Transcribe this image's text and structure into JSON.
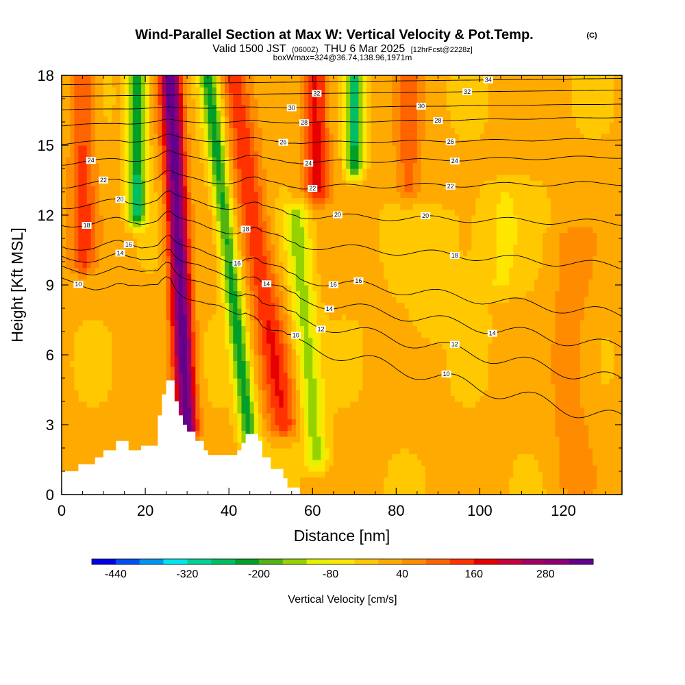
{
  "title": {
    "main": "Wind-Parallel Section at Max W: Vertical Velocity & Pot.Temp.",
    "copyright": "(C)",
    "valid_prefix": "Valid 1500 JST",
    "valid_utc": "(0600Z)",
    "valid_date": "THU 6 Mar 2025",
    "forecast": "[12hrFcst@2228z]",
    "box_info": "boxWmax=324@36.74,138.96,1971m"
  },
  "chart_data": {
    "type": "heatmap",
    "xlabel": "Distance [nm]",
    "ylabel": "Height [Kft MSL]",
    "xlim": [
      0,
      134
    ],
    "ylim": [
      0,
      18
    ],
    "x_ticks": [
      0,
      20,
      40,
      60,
      80,
      100,
      120
    ],
    "y_ticks": [
      0,
      3,
      6,
      9,
      12,
      15,
      18
    ],
    "x_tick_labels": [
      "0",
      "20",
      "40",
      "60",
      "80",
      "100",
      "120"
    ],
    "y_tick_labels": [
      "0",
      "3",
      "6",
      "9",
      "12",
      "15",
      "18"
    ],
    "colorbar": {
      "label": "Vertical Velocity [cm/s]",
      "tick_labels": [
        "-440",
        "-320",
        "-200",
        "-80",
        "40",
        "160",
        "280"
      ],
      "min": -480,
      "step": 40,
      "colors": [
        "#0000e6",
        "#0050f0",
        "#0096f0",
        "#00e6f0",
        "#00d296",
        "#00be64",
        "#00a028",
        "#50b414",
        "#96d200",
        "#e6f000",
        "#ffe600",
        "#ffc800",
        "#ffaa00",
        "#ff8c00",
        "#ff6400",
        "#ff3200",
        "#e60000",
        "#c8003c",
        "#a00064",
        "#8c0078",
        "#64008c"
      ]
    },
    "terrain_profile": {
      "x": [
        0,
        1,
        4,
        8,
        10,
        13,
        14,
        16,
        19,
        23,
        24,
        25,
        26,
        27,
        28,
        29,
        30,
        32,
        34,
        35,
        36,
        38,
        40,
        42,
        43,
        44,
        46,
        47,
        48,
        50,
        53,
        54,
        56,
        57,
        58,
        134
      ],
      "height_kft": [
        1.0,
        1.0,
        1.3,
        1.6,
        1.9,
        2.3,
        2.3,
        1.9,
        2.1,
        3.4,
        4.3,
        4.9,
        4.9,
        4.0,
        3.4,
        3.0,
        2.7,
        2.3,
        1.9,
        1.7,
        1.7,
        1.7,
        1.7,
        1.9,
        2.2,
        2.6,
        2.6,
        2.3,
        1.6,
        1.1,
        0.7,
        0.3,
        0.3,
        0.0,
        0.0,
        0.0
      ]
    },
    "w_features": [
      {
        "x": 5,
        "w": 3,
        "x_top": 5,
        "y0": 10,
        "y1": 18,
        "amp": 120
      },
      {
        "x": 30,
        "w": 2.5,
        "x_top": 26,
        "y0": 2.8,
        "y1": 18,
        "amp": 340
      },
      {
        "x": 18,
        "w": 2.2,
        "x_top": 18,
        "y0": 12,
        "y1": 18,
        "amp": -260
      },
      {
        "x": 46,
        "w": 2.2,
        "x_top": 35,
        "y0": 0.8,
        "y1": 18,
        "amp": -230
      },
      {
        "x": 53,
        "w": 3.5,
        "x_top": 41,
        "y0": 3,
        "y1": 18,
        "amp": 140
      },
      {
        "x": 61,
        "w": 2.8,
        "x_top": 56,
        "y0": 1.5,
        "y1": 12,
        "amp": -150
      },
      {
        "x": 61,
        "w": 3,
        "x_top": 61,
        "y0": 13,
        "y1": 18,
        "amp": 160
      },
      {
        "x": 70,
        "w": 2,
        "x_top": 70,
        "y0": 14,
        "y1": 18,
        "amp": -260
      },
      {
        "x": 83,
        "w": 3,
        "x_top": 83,
        "y0": 13,
        "y1": 18,
        "amp": 90
      },
      {
        "x": 90,
        "w": 10,
        "x_top": 90,
        "y0": 7,
        "y1": 12,
        "amp": -30
      },
      {
        "x": 105,
        "w": 6,
        "x_top": 105,
        "y0": 9,
        "y1": 13,
        "amp": -50
      },
      {
        "x": 122,
        "w": 5,
        "x_top": 122,
        "y0": 0.5,
        "y1": 11,
        "amp": 50
      }
    ],
    "theta_contours": [
      {
        "label": "10",
        "level": 10,
        "base_kft": 8.8,
        "slope": -0.042,
        "label_x": [
          4,
          56,
          92
        ]
      },
      {
        "label": "12",
        "level": 12,
        "base_kft": 9.4,
        "slope": -0.034,
        "label_x": [
          62,
          94
        ]
      },
      {
        "label": "14",
        "level": 14,
        "base_kft": 9.9,
        "slope": -0.027,
        "label_x": [
          14,
          49,
          64,
          103
        ]
      },
      {
        "label": "16",
        "level": 16,
        "base_kft": 10.4,
        "slope": -0.02,
        "label_x": [
          16,
          42,
          65,
          71
        ]
      },
      {
        "label": "18",
        "level": 18,
        "base_kft": 11.4,
        "slope": -0.012,
        "label_x": [
          6,
          44,
          94
        ]
      },
      {
        "label": "20",
        "level": 20,
        "base_kft": 12.2,
        "slope": -0.004,
        "label_x": [
          14,
          66,
          87
        ]
      },
      {
        "label": "22",
        "level": 22,
        "base_kft": 13.1,
        "slope": 0.002,
        "label_x": [
          10,
          60,
          93
        ]
      },
      {
        "label": "24",
        "level": 24,
        "base_kft": 14.1,
        "slope": 0.003,
        "label_x": [
          7,
          59,
          94
        ]
      },
      {
        "label": "26",
        "level": 26,
        "base_kft": 15.0,
        "slope": 0.002,
        "label_x": [
          53,
          93
        ]
      },
      {
        "label": "28",
        "level": 28,
        "base_kft": 15.8,
        "slope": 0.003,
        "label_x": [
          58,
          90
        ]
      },
      {
        "label": "30",
        "level": 30,
        "base_kft": 16.5,
        "slope": 0.002,
        "label_x": [
          55,
          86
        ]
      },
      {
        "label": "32",
        "level": 32,
        "base_kft": 17.1,
        "slope": 0.002,
        "label_x": [
          61,
          97
        ]
      },
      {
        "label": "34",
        "level": 34,
        "base_kft": 17.6,
        "slope": 0.002,
        "label_x": [
          102
        ]
      }
    ]
  }
}
